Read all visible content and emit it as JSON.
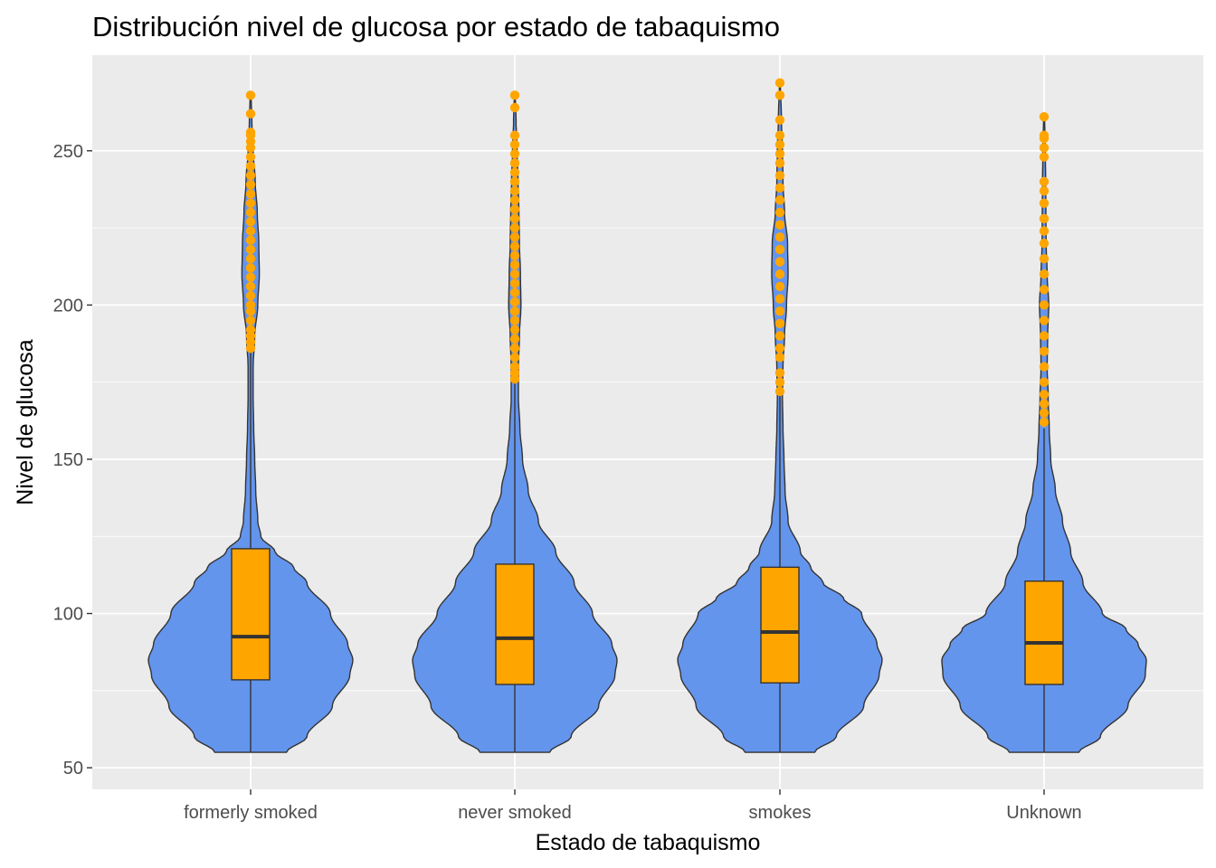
{
  "chart_data": {
    "type": "violin",
    "title": "Distribución nivel de glucosa por estado de tabaquismo",
    "xlabel": "Estado de tabaquismo",
    "ylabel": "Nivel de glucosa",
    "ylim": [
      43,
      281
    ],
    "yticks": [
      50,
      100,
      150,
      200,
      250
    ],
    "grid": true,
    "colors": {
      "violin_fill": "#6495ED",
      "violin_stroke": "#333333",
      "box_fill": "#FFA500",
      "outlier": "#FFA500",
      "panel_background": "#EBEBEB",
      "gridline": "#FFFFFF"
    },
    "categories": [
      "formerly smoked",
      "never smoked",
      "smokes",
      "Unknown"
    ],
    "series": [
      {
        "category": "formerly smoked",
        "min": 55,
        "q1": 78.5,
        "median": 92.5,
        "q3": 121,
        "whisker_high": 185,
        "max": 268,
        "density": [
          [
            55,
            0.35
          ],
          [
            60,
            0.55
          ],
          [
            70,
            0.8
          ],
          [
            80,
            0.97
          ],
          [
            85,
            1.0
          ],
          [
            90,
            0.95
          ],
          [
            100,
            0.78
          ],
          [
            110,
            0.55
          ],
          [
            115,
            0.42
          ],
          [
            120,
            0.24
          ],
          [
            125,
            0.1
          ],
          [
            130,
            0.07
          ],
          [
            140,
            0.05
          ],
          [
            150,
            0.04
          ],
          [
            160,
            0.03
          ],
          [
            170,
            0.025
          ],
          [
            180,
            0.025
          ],
          [
            190,
            0.04
          ],
          [
            200,
            0.07
          ],
          [
            210,
            0.085
          ],
          [
            220,
            0.08
          ],
          [
            230,
            0.065
          ],
          [
            240,
            0.045
          ],
          [
            250,
            0.025
          ],
          [
            260,
            0.012
          ],
          [
            268,
            0.005
          ]
        ],
        "outliers": [
          186,
          188,
          190,
          192,
          195,
          198,
          200,
          203,
          206,
          209,
          212,
          215,
          218,
          221,
          224,
          227,
          230,
          233,
          236,
          239,
          242,
          245,
          248,
          251,
          253,
          255,
          256,
          262,
          268
        ]
      },
      {
        "category": "never smoked",
        "min": 55,
        "q1": 77,
        "median": 92,
        "q3": 116,
        "whisker_high": 175,
        "max": 268,
        "density": [
          [
            55,
            0.34
          ],
          [
            60,
            0.55
          ],
          [
            70,
            0.82
          ],
          [
            80,
            0.98
          ],
          [
            85,
            1.0
          ],
          [
            90,
            0.95
          ],
          [
            100,
            0.76
          ],
          [
            110,
            0.58
          ],
          [
            120,
            0.4
          ],
          [
            130,
            0.23
          ],
          [
            140,
            0.13
          ],
          [
            150,
            0.075
          ],
          [
            160,
            0.05
          ],
          [
            170,
            0.035
          ],
          [
            180,
            0.035
          ],
          [
            190,
            0.045
          ],
          [
            200,
            0.06
          ],
          [
            210,
            0.055
          ],
          [
            220,
            0.045
          ],
          [
            230,
            0.04
          ],
          [
            240,
            0.032
          ],
          [
            250,
            0.022
          ],
          [
            260,
            0.012
          ],
          [
            268,
            0.005
          ]
        ],
        "outliers": [
          176,
          178,
          180,
          183,
          186,
          189,
          192,
          195,
          198,
          201,
          204,
          207,
          210,
          213,
          216,
          219,
          222,
          225,
          228,
          231,
          234,
          237,
          240,
          243,
          246,
          249,
          252,
          255,
          264,
          268
        ]
      },
      {
        "category": "smokes",
        "min": 55,
        "q1": 77.5,
        "median": 94,
        "q3": 115,
        "whisker_high": 171,
        "max": 272,
        "density": [
          [
            55,
            0.34
          ],
          [
            60,
            0.55
          ],
          [
            70,
            0.82
          ],
          [
            80,
            0.97
          ],
          [
            85,
            1.0
          ],
          [
            90,
            0.95
          ],
          [
            100,
            0.8
          ],
          [
            105,
            0.62
          ],
          [
            110,
            0.42
          ],
          [
            115,
            0.3
          ],
          [
            120,
            0.2
          ],
          [
            130,
            0.08
          ],
          [
            140,
            0.05
          ],
          [
            150,
            0.04
          ],
          [
            160,
            0.03
          ],
          [
            170,
            0.025
          ],
          [
            180,
            0.03
          ],
          [
            190,
            0.045
          ],
          [
            200,
            0.065
          ],
          [
            210,
            0.08
          ],
          [
            220,
            0.075
          ],
          [
            230,
            0.045
          ],
          [
            240,
            0.03
          ],
          [
            250,
            0.025
          ],
          [
            260,
            0.015
          ],
          [
            272,
            0.005
          ]
        ],
        "outliers": [
          172,
          175,
          178,
          183,
          186,
          190,
          194,
          198,
          202,
          206,
          210,
          214,
          218,
          222,
          226,
          230,
          234,
          238,
          242,
          246,
          249,
          252,
          255,
          260,
          268,
          272
        ]
      },
      {
        "category": "Unknown",
        "min": 55,
        "q1": 77,
        "median": 90.5,
        "q3": 110.5,
        "whisker_high": 160,
        "max": 261,
        "density": [
          [
            55,
            0.34
          ],
          [
            60,
            0.55
          ],
          [
            70,
            0.82
          ],
          [
            80,
            0.99
          ],
          [
            85,
            1.0
          ],
          [
            90,
            0.92
          ],
          [
            95,
            0.8
          ],
          [
            100,
            0.57
          ],
          [
            110,
            0.38
          ],
          [
            120,
            0.26
          ],
          [
            130,
            0.18
          ],
          [
            140,
            0.11
          ],
          [
            150,
            0.065
          ],
          [
            160,
            0.05
          ],
          [
            170,
            0.04
          ],
          [
            180,
            0.03
          ],
          [
            190,
            0.035
          ],
          [
            200,
            0.045
          ],
          [
            210,
            0.03
          ],
          [
            220,
            0.02
          ],
          [
            230,
            0.018
          ],
          [
            240,
            0.015
          ],
          [
            250,
            0.012
          ],
          [
            261,
            0.005
          ]
        ],
        "outliers": [
          162,
          165,
          168,
          171,
          175,
          180,
          185,
          190,
          195,
          200,
          205,
          210,
          215,
          220,
          224,
          228,
          233,
          237,
          240,
          248,
          251,
          254,
          255,
          261
        ]
      }
    ]
  }
}
